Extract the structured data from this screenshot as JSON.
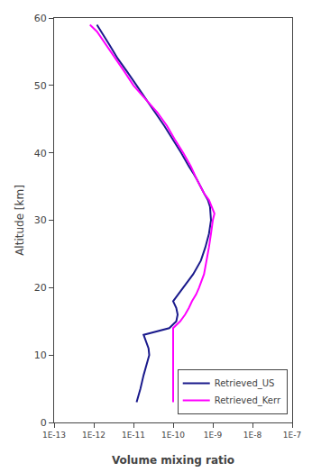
{
  "chart_data": {
    "type": "line",
    "xlabel": "Volume mixing ratio",
    "ylabel": "Altitude [km]",
    "log": "x",
    "grid": false,
    "legend": "lower right",
    "xlim": [
      1e-13,
      1e-07
    ],
    "xticks": [
      {
        "value": 1e-13,
        "label": "1E-13"
      },
      {
        "value": 1e-12,
        "label": "1E-12"
      },
      {
        "value": 1e-11,
        "label": "1E-11"
      },
      {
        "value": 1e-10,
        "label": "1E-10"
      },
      {
        "value": 1e-09,
        "label": "1E-9"
      },
      {
        "value": 1e-08,
        "label": "1E-8"
      },
      {
        "value": 1e-07,
        "label": "1E-7"
      }
    ],
    "ylim": [
      0,
      60
    ],
    "yticks": [
      0,
      10,
      20,
      30,
      40,
      50,
      60
    ],
    "series": [
      {
        "name": "Retrieved_US",
        "color": "#1a1a8c",
        "x": [
          1.2e-11,
          1.5e-11,
          1.8e-11,
          2.2e-11,
          2.5e-11,
          2.4e-11,
          2.1e-11,
          1.8e-11,
          8e-11,
          1.2e-10,
          1.3e-10,
          1.2e-10,
          1e-10,
          1.8e-10,
          3.2e-10,
          5e-10,
          6.5e-10,
          8e-10,
          9e-10,
          8.5e-10,
          7.5e-10,
          6e-10,
          5e-10,
          4e-10,
          3.2e-10,
          2.5e-10,
          1.6e-10,
          1e-10,
          6e-11,
          3.5e-11,
          2e-11,
          1.2e-11,
          7e-12,
          4e-12,
          2.5e-12,
          1.5e-12,
          1.2e-12
        ],
        "values": [
          3,
          5,
          7,
          9,
          10,
          11,
          12,
          13,
          14,
          15,
          16,
          17,
          18,
          20,
          22,
          24,
          26,
          28,
          30,
          32,
          33,
          34,
          35,
          36,
          37,
          38,
          40,
          42,
          44,
          46,
          48,
          50,
          52,
          54,
          56,
          58,
          59
        ]
      },
      {
        "name": "Retrieved_Kerr",
        "color": "#ff00ff",
        "x": [
          1e-10,
          1e-10,
          1e-10,
          1e-10,
          1e-10,
          1.5e-10,
          2e-10,
          2.5e-10,
          3e-10,
          3.8e-10,
          4.5e-10,
          6e-10,
          7e-10,
          8e-10,
          9e-10,
          9.5e-10,
          1e-09,
          1.1e-09,
          9.5e-10,
          8e-10,
          6e-10,
          4e-10,
          2.8e-10,
          1.8e-10,
          1.1e-10,
          7e-11,
          4e-11,
          2e-11,
          1e-11,
          6e-12,
          3.5e-12,
          2e-12,
          1.2e-12,
          8e-13
        ],
        "values": [
          3,
          4,
          10,
          12,
          14,
          15,
          16,
          17,
          18,
          19,
          20,
          22,
          24,
          26,
          28,
          29,
          30,
          31,
          32,
          33,
          34,
          36,
          38,
          40,
          42,
          44,
          46,
          48,
          50,
          52,
          54,
          56,
          58,
          59
        ]
      }
    ]
  }
}
